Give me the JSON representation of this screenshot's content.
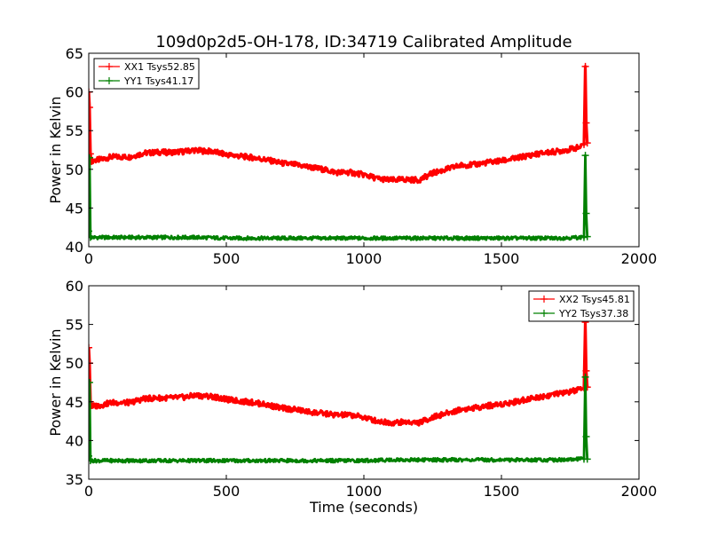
{
  "chart_data": {
    "type": "line",
    "title": "109d0p2d5-OH-178, ID:34719 Calibrated Amplitude",
    "xlabel": "Time (seconds)",
    "panels": [
      {
        "ylabel": "Power in Kelvin",
        "xlim": [
          0,
          2000
        ],
        "ylim": [
          40,
          65
        ],
        "xticks": [
          "0",
          "500",
          "1000",
          "1500",
          "2000"
        ],
        "yticks": [
          "40",
          "45",
          "50",
          "55",
          "60",
          "65"
        ],
        "show_xlabel": false,
        "legend_position": "top-left",
        "series": [
          {
            "name": "XX1 Tsys52.85",
            "color": "#ff0000",
            "x": [
              0,
              3,
              6,
              10,
              50,
              80,
              100,
              150,
              200,
              250,
              300,
              350,
              380,
              400,
              450,
              500,
              550,
              600,
              650,
              700,
              750,
              800,
              850,
              900,
              950,
              1000,
              1050,
              1100,
              1150,
              1200,
              1250,
              1300,
              1350,
              1400,
              1450,
              1500,
              1550,
              1600,
              1650,
              1700,
              1750,
              1790,
              1800,
              1805,
              1808,
              1812
            ],
            "y": [
              60,
              58,
              52,
              51.1,
              51.3,
              51.6,
              51.6,
              51.6,
              52.1,
              52.2,
              52.2,
              52.3,
              52.5,
              52.4,
              52.3,
              51.9,
              51.7,
              51.5,
              51.2,
              50.8,
              50.6,
              50.3,
              50.0,
              49.6,
              49.6,
              49.3,
              48.8,
              48.6,
              48.7,
              48.6,
              49.5,
              50.0,
              50.5,
              50.6,
              50.9,
              51.1,
              51.4,
              51.8,
              52.1,
              52.3,
              52.6,
              52.9,
              53.2,
              63.3,
              56,
              53.4
            ]
          },
          {
            "name": "YY1 Tsys41.17",
            "color": "#008000",
            "x": [
              0,
              3,
              6,
              10,
              100,
              200,
              300,
              400,
              500,
              600,
              700,
              800,
              900,
              1000,
              1100,
              1200,
              1300,
              1400,
              1500,
              1600,
              1700,
              1790,
              1800,
              1805,
              1808,
              1812
            ],
            "y": [
              42,
              51.5,
              41.2,
              41.2,
              41.2,
              41.2,
              41.2,
              41.2,
              41.1,
              41.1,
              41.1,
              41.1,
              41.1,
              41.1,
              41.1,
              41.1,
              41.1,
              41.1,
              41.1,
              41.1,
              41.1,
              41.2,
              41.2,
              51.8,
              44.3,
              41.3
            ]
          }
        ]
      },
      {
        "ylabel": "Power in Kelvin",
        "xlim": [
          0,
          2000
        ],
        "ylim": [
          35,
          60
        ],
        "xticks": [
          "0",
          "500",
          "1000",
          "1500",
          "2000"
        ],
        "yticks": [
          "35",
          "40",
          "45",
          "50",
          "55",
          "60"
        ],
        "show_xlabel": true,
        "legend_position": "top-right",
        "series": [
          {
            "name": "XX2 Tsys45.81",
            "color": "#ff0000",
            "x": [
              0,
              3,
              6,
              10,
              50,
              80,
              100,
              150,
              200,
              250,
              300,
              350,
              380,
              400,
              450,
              500,
              550,
              600,
              650,
              700,
              750,
              800,
              850,
              900,
              950,
              1000,
              1050,
              1100,
              1150,
              1200,
              1250,
              1300,
              1350,
              1400,
              1450,
              1500,
              1550,
              1600,
              1650,
              1700,
              1750,
              1790,
              1800,
              1805,
              1808,
              1812
            ],
            "y": [
              52,
              50,
              45,
              44.4,
              44.6,
              44.9,
              44.9,
              44.9,
              45.4,
              45.5,
              45.5,
              45.6,
              45.8,
              45.8,
              45.7,
              45.3,
              45.1,
              44.9,
              44.6,
              44.2,
              44.0,
              43.7,
              43.5,
              43.3,
              43.3,
              43.0,
              42.5,
              42.3,
              42.4,
              42.3,
              43.0,
              43.5,
              44.0,
              44.2,
              44.5,
              44.7,
              45.0,
              45.4,
              45.7,
              46.0,
              46.3,
              46.6,
              46.8,
              55.3,
              49,
              46.9
            ]
          },
          {
            "name": "YY2 Tsys37.38",
            "color": "#008000",
            "x": [
              0,
              3,
              6,
              10,
              100,
              200,
              300,
              400,
              500,
              600,
              700,
              800,
              900,
              1000,
              1100,
              1200,
              1300,
              1400,
              1500,
              1600,
              1700,
              1790,
              1800,
              1805,
              1808,
              1812
            ],
            "y": [
              38,
              47.5,
              37.4,
              37.4,
              37.4,
              37.4,
              37.4,
              37.4,
              37.4,
              37.4,
              37.4,
              37.4,
              37.4,
              37.4,
              37.5,
              37.5,
              37.5,
              37.5,
              37.5,
              37.5,
              37.5,
              37.6,
              37.6,
              48.2,
              40.5,
              37.6
            ]
          }
        ]
      }
    ]
  }
}
